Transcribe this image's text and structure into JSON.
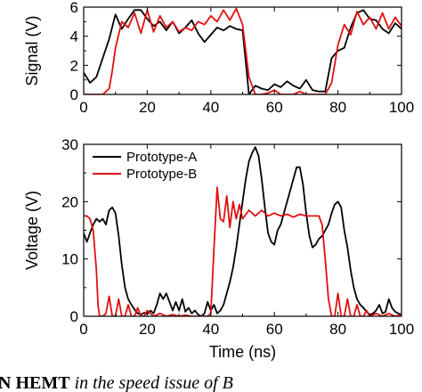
{
  "chart_data": [
    {
      "type": "line",
      "ylabel": "Signal (V)",
      "xlabel": "",
      "xlim": [
        0,
        100
      ],
      "ylim": [
        0,
        6
      ],
      "xticks": [
        0,
        20,
        40,
        60,
        80,
        100
      ],
      "yticks": [
        0,
        2,
        4,
        6
      ],
      "series": [
        {
          "color": "#000000",
          "x": [
            0,
            2,
            4,
            6,
            8,
            10,
            12,
            14,
            16,
            18,
            20,
            22,
            24,
            26,
            28,
            30,
            32,
            34,
            36,
            38,
            40,
            42,
            44,
            46,
            48,
            50,
            51,
            52,
            54,
            56,
            58,
            60,
            62,
            64,
            66,
            68,
            70,
            72,
            74,
            76,
            78,
            80,
            82,
            84,
            86,
            88,
            90,
            92,
            94,
            96,
            98,
            100
          ],
          "y": [
            1.5,
            0.8,
            1.2,
            2.5,
            3.8,
            5.5,
            4.5,
            5.2,
            5.8,
            5.8,
            5.2,
            4.7,
            5.0,
            4.4,
            5.0,
            4.2,
            4.6,
            5.1,
            4.2,
            3.6,
            4.1,
            4.6,
            4.4,
            4.7,
            4.5,
            4.4,
            2.2,
            0.0,
            0.6,
            0.4,
            0.3,
            0.7,
            0.5,
            0.9,
            0.6,
            0.4,
            1.0,
            0.3,
            0.2,
            0.2,
            2.5,
            3.0,
            3.2,
            4.6,
            5.6,
            5.8,
            5.2,
            5.1,
            4.5,
            4.2,
            4.9,
            4.5
          ]
        },
        {
          "color": "#e01010",
          "x": [
            0,
            2,
            4,
            6,
            8,
            9,
            10,
            12,
            14,
            16,
            18,
            20,
            22,
            24,
            26,
            28,
            30,
            32,
            34,
            36,
            38,
            40,
            42,
            44,
            46,
            48,
            50,
            52,
            54,
            56,
            58,
            60,
            62,
            64,
            66,
            68,
            70,
            72,
            74,
            76,
            78,
            80,
            82,
            84,
            86,
            88,
            90,
            92,
            94,
            96,
            98,
            100
          ],
          "y": [
            0.0,
            0.0,
            0.0,
            0.0,
            0.4,
            1.6,
            3.2,
            5.0,
            4.6,
            5.6,
            4.2,
            5.8,
            4.3,
            5.4,
            4.6,
            5.0,
            4.3,
            4.6,
            4.4,
            5.0,
            4.8,
            5.4,
            5.0,
            5.8,
            5.1,
            5.9,
            4.8,
            1.2,
            0.0,
            0.0,
            0.1,
            0.3,
            0.0,
            0.0,
            0.0,
            0.2,
            0.0,
            0.0,
            0.0,
            0.0,
            0.8,
            3.4,
            4.8,
            4.1,
            5.7,
            4.8,
            5.3,
            4.5,
            5.6,
            4.5,
            5.3,
            4.7
          ]
        }
      ]
    },
    {
      "type": "line",
      "ylabel": "Voltage (V)",
      "xlabel": "Time (ns)",
      "xlim": [
        0,
        100
      ],
      "ylim": [
        0,
        30
      ],
      "xticks": [
        0,
        20,
        40,
        60,
        80,
        100
      ],
      "yticks": [
        0,
        10,
        20,
        30
      ],
      "legend_position": "top-left",
      "series": [
        {
          "name": "Prototype-A",
          "color": "#000000",
          "x": [
            0,
            1,
            2,
            3,
            4,
            5,
            6,
            7,
            8,
            9,
            10,
            11,
            12,
            13,
            14,
            15,
            16,
            17,
            18,
            19,
            20,
            21,
            22,
            23,
            24,
            25,
            26,
            27,
            28,
            29,
            30,
            31,
            32,
            33,
            34,
            35,
            36,
            37,
            38,
            39,
            40,
            41,
            42,
            43,
            44,
            45,
            46,
            47,
            48,
            49,
            50,
            51,
            52,
            53,
            54,
            55,
            56,
            57,
            58,
            59,
            60,
            61,
            62,
            63,
            64,
            65,
            66,
            67,
            68,
            69,
            70,
            71,
            72,
            73,
            74,
            75,
            76,
            77,
            78,
            79,
            80,
            81,
            82,
            83,
            84,
            85,
            86,
            87,
            88,
            89,
            90,
            91,
            92,
            93,
            94,
            95,
            96,
            97,
            98,
            99,
            100
          ],
          "y": [
            14.5,
            13.0,
            14.5,
            16.0,
            17.0,
            16.5,
            17.0,
            16.0,
            18.5,
            19.0,
            18.0,
            14.0,
            9.0,
            5.0,
            3.0,
            2.0,
            1.2,
            0.5,
            0.3,
            0.6,
            0.4,
            1.0,
            0.5,
            2.0,
            4.0,
            3.0,
            4.0,
            2.5,
            1.0,
            2.5,
            1.0,
            3.0,
            0.8,
            1.5,
            0.5,
            1.0,
            0.3,
            0.0,
            0.5,
            2.5,
            1.0,
            2.0,
            0.5,
            1.0,
            2.0,
            4.0,
            6.0,
            8.5,
            12.0,
            16.0,
            20.0,
            24.0,
            27.0,
            28.5,
            29.5,
            28.0,
            24.0,
            19.0,
            14.5,
            13.0,
            12.5,
            15.0,
            16.0,
            18.0,
            20.0,
            22.0,
            24.0,
            26.0,
            26.0,
            23.0,
            18.0,
            14.0,
            12.0,
            12.5,
            13.5,
            14.0,
            15.0,
            16.0,
            18.0,
            19.5,
            20.0,
            19.0,
            15.0,
            12.0,
            8.0,
            5.0,
            3.0,
            2.0,
            1.5,
            0.8,
            0.3,
            0.5,
            1.0,
            2.0,
            0.5,
            0.8,
            3.0,
            1.5,
            0.8,
            0.5,
            0.3
          ]
        },
        {
          "name": "Prototype-B",
          "color": "#e01010",
          "x": [
            0,
            1,
            2,
            3,
            4,
            4.5,
            5,
            5.5,
            6,
            7,
            8,
            9,
            10,
            11,
            12,
            13,
            14,
            15,
            16,
            17,
            18,
            19,
            20,
            22,
            24,
            26,
            28,
            30,
            32,
            34,
            36,
            38,
            39,
            40,
            41,
            42,
            43,
            44,
            45,
            46,
            47,
            48,
            49,
            50,
            52,
            54,
            56,
            58,
            60,
            62,
            64,
            66,
            68,
            70,
            72,
            74,
            75,
            76,
            77,
            78,
            79,
            80,
            81,
            82,
            83,
            84,
            85,
            86,
            87,
            88,
            89,
            90,
            92,
            94,
            96,
            98,
            100
          ],
          "y": [
            17.5,
            17.5,
            17.0,
            15.0,
            8.0,
            2.0,
            0.0,
            0.0,
            0.0,
            0.5,
            3.5,
            0.0,
            0.0,
            3.0,
            0.0,
            0.0,
            2.0,
            0.0,
            0.0,
            1.5,
            0.0,
            0.0,
            1.0,
            0.0,
            0.5,
            0.0,
            0.3,
            0.0,
            0.2,
            0.0,
            0.0,
            0.0,
            0.0,
            0.5,
            12.0,
            22.5,
            17.0,
            16.5,
            21.0,
            15.5,
            20.0,
            17.0,
            19.5,
            17.0,
            18.5,
            17.5,
            18.5,
            17.5,
            18.0,
            17.5,
            17.8,
            17.3,
            17.8,
            17.5,
            17.5,
            17.5,
            16.0,
            10.0,
            3.0,
            0.0,
            0.0,
            4.0,
            0.0,
            0.0,
            3.0,
            0.0,
            0.0,
            2.0,
            0.0,
            0.0,
            1.0,
            0.0,
            0.5,
            0.0,
            0.5,
            0.0,
            0.3
          ]
        }
      ]
    }
  ],
  "caption": {
    "bold": "N HEMT",
    "rest": " in the speed issue of",
    "tail": " B"
  }
}
